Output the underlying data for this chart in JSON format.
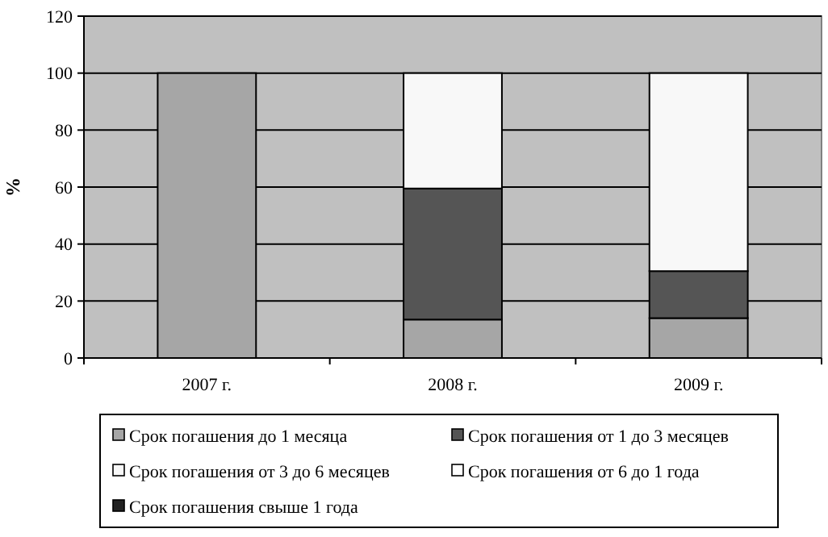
{
  "chart_data": {
    "type": "bar",
    "stacked": true,
    "ylabel": "%",
    "categories": [
      "2007 г.",
      "2008 г.",
      "2009 г."
    ],
    "series": [
      {
        "name": "Срок погашения до 1 месяца",
        "color": "#a6a6a6",
        "values": [
          100,
          13.5,
          14
        ]
      },
      {
        "name": "Срок погашения от 1 до 3 месяцев",
        "color": "#555555",
        "values": [
          0,
          46,
          16.5
        ]
      },
      {
        "name": "Срок погашения от 3 до 6 месяцев",
        "color": "#f8f8f8",
        "values": [
          0,
          40.5,
          69.5
        ]
      },
      {
        "name": "Срок погашения от 6 до 1 года",
        "color": "#ffffff",
        "values": [
          0,
          0,
          0
        ]
      },
      {
        "name": "Срок погашения свыше 1 года",
        "color": "#222222",
        "values": [
          0,
          0,
          0
        ]
      }
    ],
    "ylim": [
      0,
      120
    ],
    "yticks": [
      0,
      20,
      40,
      60,
      80,
      100,
      120
    ],
    "grid": "y",
    "legend": "bottom"
  }
}
